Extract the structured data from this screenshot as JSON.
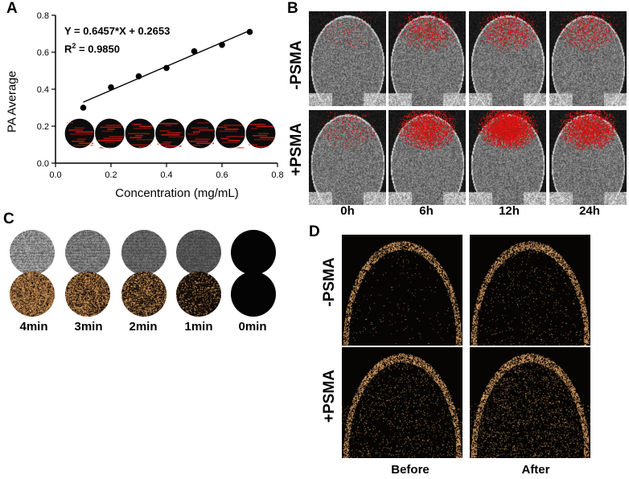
{
  "panels": {
    "a": "A",
    "b": "B",
    "c": "C",
    "d": "D"
  },
  "chart_data": {
    "type": "scatter",
    "x": [
      0.1,
      0.2,
      0.3,
      0.4,
      0.5,
      0.6,
      0.7
    ],
    "y": [
      0.3,
      0.41,
      0.47,
      0.515,
      0.605,
      0.64,
      0.71
    ],
    "fit": {
      "slope": 0.6457,
      "intercept": 0.2653
    },
    "equation": "Y = 0.6457*X + 0.2653",
    "r2_prefix": "R",
    "r2_sup": "2",
    "r2_value": " = 0.9850",
    "xlabel": "Concentration (mg/mL)",
    "ylabel": "PA Average",
    "xlim": [
      0.0,
      0.8
    ],
    "ylim": [
      0.0,
      0.8
    ],
    "xticks": [
      "0.0",
      "0.2",
      "0.4",
      "0.6",
      "0.8"
    ],
    "yticks": [
      "0.0",
      "0.2",
      "0.4",
      "0.6",
      "0.8"
    ],
    "inset_images": 7
  },
  "panel_b": {
    "rows": [
      "-PSMA",
      "+PSMA"
    ],
    "cols": [
      "0h",
      "6h",
      "12h",
      "24h"
    ],
    "red_intensity_minus": [
      0.05,
      0.35,
      0.35,
      0.3
    ],
    "red_intensity_plus": [
      0.15,
      0.7,
      1.0,
      0.75
    ]
  },
  "panel_c": {
    "times": [
      "4min",
      "3min",
      "2min",
      "1min",
      "0min"
    ],
    "top_brightness": [
      0.75,
      0.6,
      0.45,
      0.35,
      0.0
    ],
    "bottom_brightness": [
      0.9,
      0.75,
      0.55,
      0.25,
      0.0
    ]
  },
  "panel_d": {
    "rows": [
      "-PSMA",
      "+PSMA"
    ],
    "cols": [
      "Before",
      "After"
    ]
  },
  "colors": {
    "pa_red": "#d11a14",
    "us_gold": "#e8b070",
    "dot": "#000000"
  }
}
